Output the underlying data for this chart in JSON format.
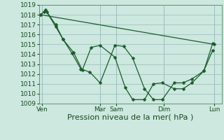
{
  "xlabel": "Pression niveau de la mer( hPa )",
  "ylim": [
    1009,
    1019
  ],
  "yticks": [
    1009,
    1010,
    1011,
    1012,
    1013,
    1014,
    1015,
    1016,
    1017,
    1018,
    1019
  ],
  "bg_color": "#cce8df",
  "grid_color": "#99bbbb",
  "line_color": "#1a5c2a",
  "series1_x": [
    0.0,
    0.15,
    0.5,
    0.75,
    1.05,
    1.35,
    1.65,
    2.0,
    2.5,
    2.8,
    3.1,
    3.5,
    3.8,
    4.1,
    4.5,
    4.8,
    5.1,
    5.5,
    5.8
  ],
  "series1_y": [
    1018.0,
    1018.5,
    1016.8,
    1015.5,
    1014.1,
    1012.5,
    1012.2,
    1011.1,
    1014.9,
    1014.8,
    1013.6,
    1010.5,
    1009.4,
    1009.4,
    1011.1,
    1011.1,
    1011.5,
    1012.3,
    1014.4
  ],
  "series2_x": [
    0.1,
    0.2,
    0.5,
    0.75,
    1.1,
    1.4,
    1.7,
    2.0,
    2.5,
    2.85,
    3.1,
    3.5,
    3.8,
    4.1,
    4.5,
    4.8,
    5.1,
    5.5,
    5.8
  ],
  "series2_y": [
    1018.3,
    1018.3,
    1017.0,
    1015.5,
    1014.2,
    1012.4,
    1014.7,
    1014.9,
    1013.7,
    1010.6,
    1009.4,
    1009.4,
    1011.0,
    1011.1,
    1010.5,
    1010.5,
    1011.1,
    1012.3,
    1015.1
  ],
  "series3_x": [
    0.0,
    5.85
  ],
  "series3_y": [
    1018.0,
    1015.0
  ],
  "xtick_positions": [
    0.05,
    2.0,
    2.55,
    4.15,
    5.85
  ],
  "xtick_labels": [
    "Ven",
    "Mar",
    "Sam",
    "Dim",
    "Lun"
  ],
  "vline_x": [
    0.05,
    2.0,
    2.55,
    4.15,
    5.85
  ],
  "font_size_label": 8,
  "font_size_tick": 6.5
}
